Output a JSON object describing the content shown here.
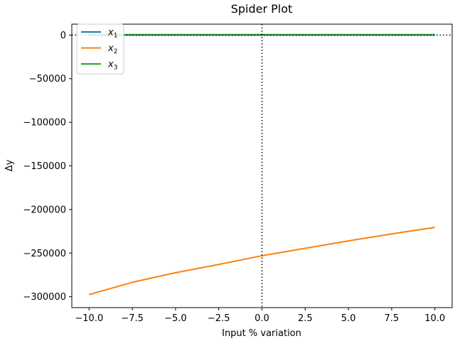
{
  "chart_data": {
    "type": "line",
    "title": "Spider Plot",
    "xlabel": "Input % variation",
    "ylabel": "Δy",
    "xlim": [
      -11,
      11
    ],
    "ylim": [
      -312500,
      12500
    ],
    "x_ticks": [
      -10.0,
      -7.5,
      -5.0,
      -2.5,
      0.0,
      2.5,
      5.0,
      7.5,
      10.0
    ],
    "x_tick_labels": [
      "−10.0",
      "−7.5",
      "−5.0",
      "−2.5",
      "0.0",
      "2.5",
      "5.0",
      "7.5",
      "10.0"
    ],
    "y_ticks": [
      0,
      -50000,
      -100000,
      -150000,
      -200000,
      -250000,
      -300000
    ],
    "y_tick_labels": [
      "0",
      "−50000",
      "−100000",
      "−150000",
      "−200000",
      "−250000",
      "−300000"
    ],
    "reference_lines": {
      "vertical_x": 0,
      "horizontal_y": 0,
      "style": "dotted",
      "color": "#000000"
    },
    "legend": {
      "placement": "upper-left"
    },
    "series": [
      {
        "name": "x1",
        "legend_base": "x",
        "legend_sub": "1",
        "color": "#1f77b4",
        "x": [
          -10,
          -5,
          0,
          5,
          10
        ],
        "y": [
          0,
          0,
          0,
          0,
          0
        ]
      },
      {
        "name": "x2",
        "legend_base": "x",
        "legend_sub": "2",
        "color": "#ff7f0e",
        "x": [
          -10,
          -7.5,
          -5,
          -2.5,
          0,
          2.5,
          5,
          7.5,
          10
        ],
        "y": [
          -297500,
          -283500,
          -272500,
          -263000,
          -253000,
          -244500,
          -236000,
          -228000,
          -220500
        ]
      },
      {
        "name": "x3",
        "legend_base": "x",
        "legend_sub": "3",
        "color": "#2ca02c",
        "x": [
          -10,
          -5,
          0,
          5,
          10
        ],
        "y": [
          500,
          500,
          500,
          500,
          500
        ]
      }
    ]
  }
}
